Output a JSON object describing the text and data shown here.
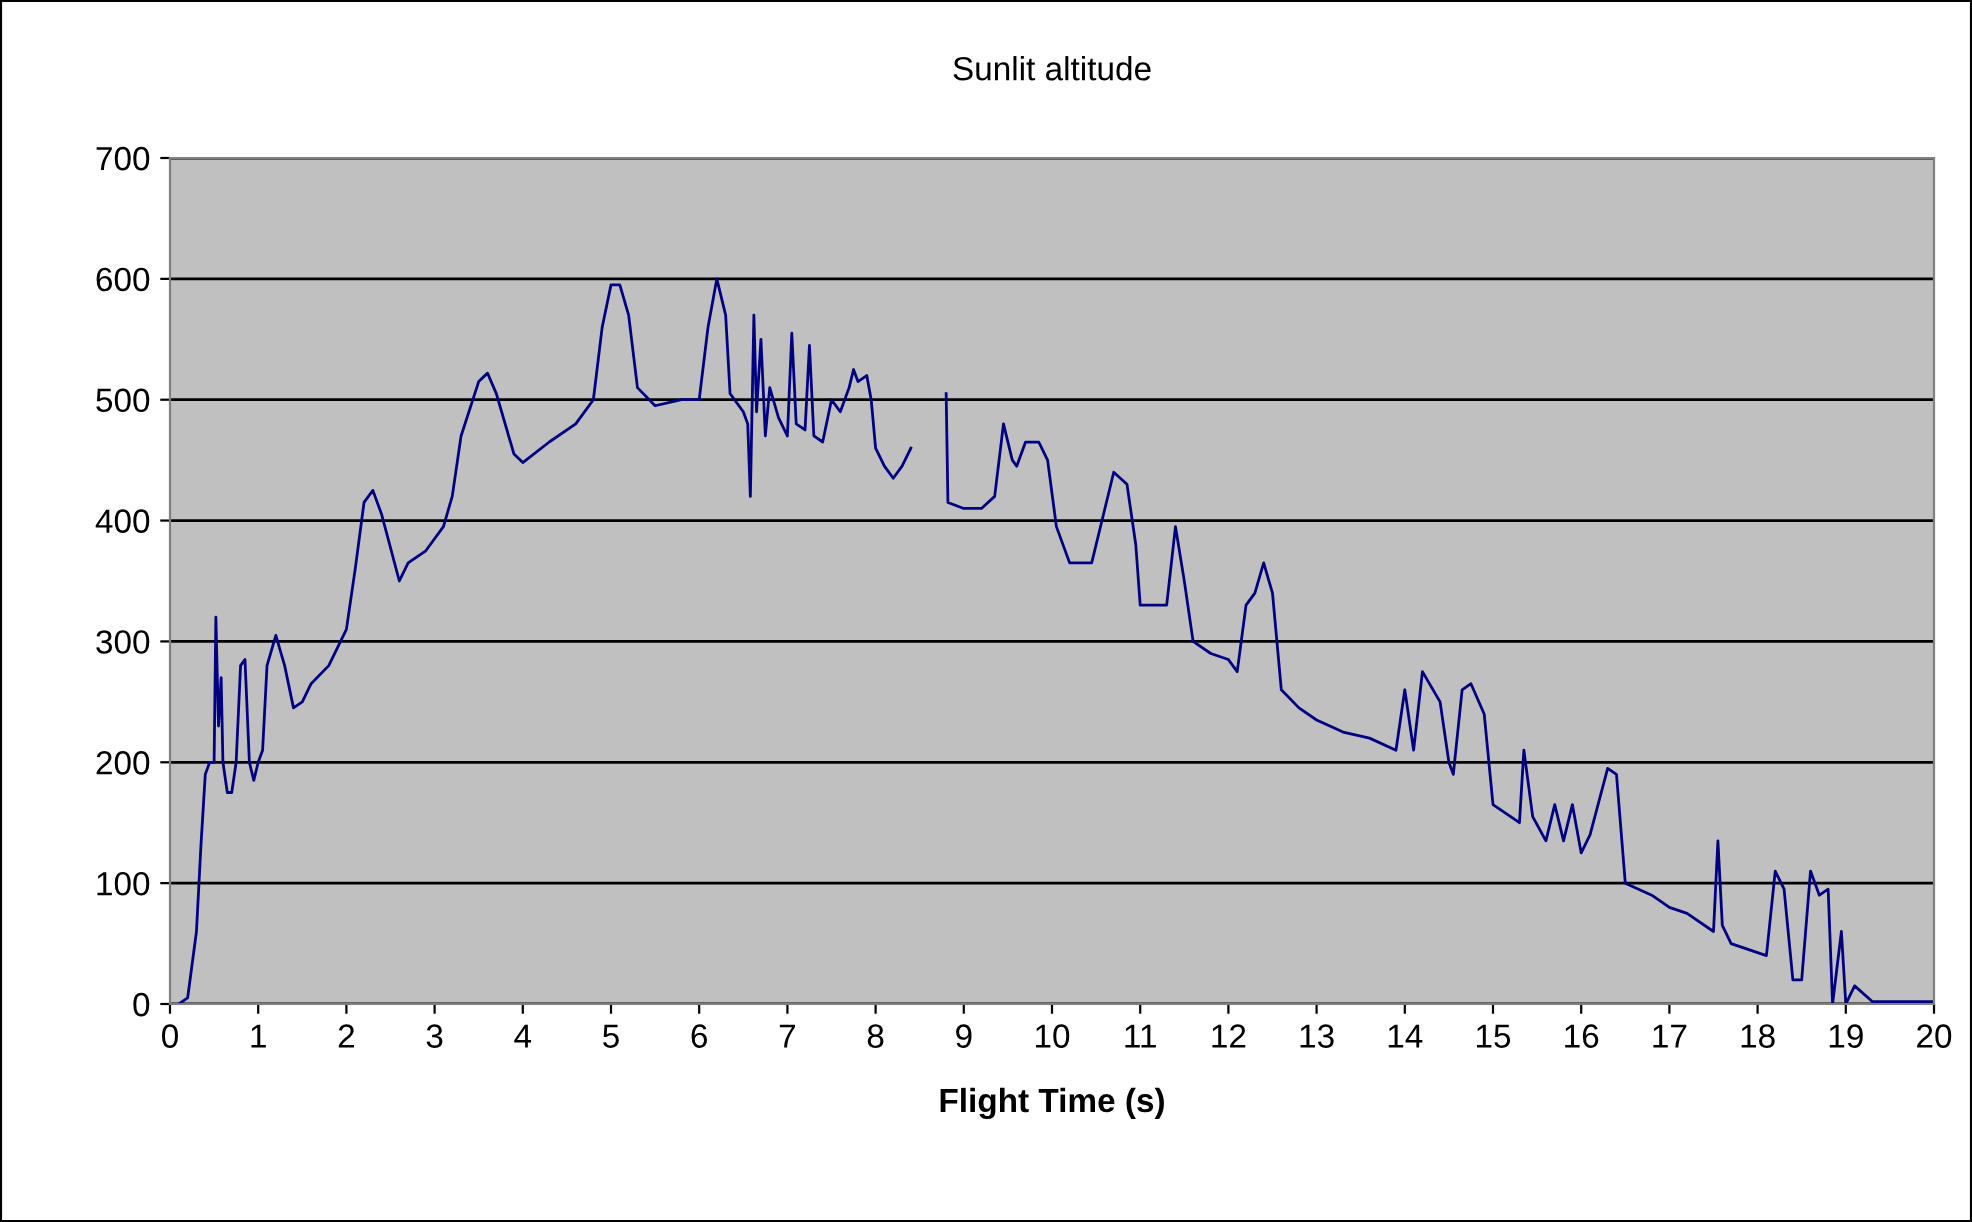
{
  "chart_data": {
    "type": "line",
    "title": "Sunlit altitude",
    "xlabel": "Flight Time (s)",
    "x": [
      0.1,
      0.2,
      0.3,
      0.35,
      0.4,
      0.45,
      0.5,
      0.52,
      0.55,
      0.58,
      0.6,
      0.65,
      0.7,
      0.75,
      0.8,
      0.85,
      0.9,
      0.95,
      1.0,
      1.05,
      1.1,
      1.2,
      1.3,
      1.4,
      1.5,
      1.6,
      1.8,
      2.0,
      2.1,
      2.2,
      2.3,
      2.4,
      2.6,
      2.7,
      2.9,
      3.1,
      3.2,
      3.3,
      3.5,
      3.6,
      3.7,
      3.9,
      4.0,
      4.3,
      4.6,
      4.8,
      4.9,
      5.0,
      5.1,
      5.2,
      5.3,
      5.5,
      5.8,
      6.0,
      6.1,
      6.2,
      6.3,
      6.35,
      6.5,
      6.55,
      6.58,
      6.62,
      6.65,
      6.7,
      6.75,
      6.8,
      6.9,
      7.0,
      7.05,
      7.1,
      7.2,
      7.25,
      7.3,
      7.4,
      7.5,
      7.6,
      7.7,
      7.75,
      7.8,
      7.9,
      7.95,
      8.0,
      8.1,
      8.2,
      8.3,
      8.4,
      8.45,
      8.8,
      8.82,
      9.0,
      9.2,
      9.35,
      9.45,
      9.55,
      9.6,
      9.7,
      9.85,
      9.95,
      10.05,
      10.2,
      10.45,
      10.6,
      10.7,
      10.85,
      10.95,
      11.0,
      11.3,
      11.4,
      11.5,
      11.6,
      11.8,
      12.0,
      12.1,
      12.2,
      12.3,
      12.4,
      12.5,
      12.6,
      12.8,
      13.0,
      13.3,
      13.6,
      13.9,
      14.0,
      14.1,
      14.2,
      14.4,
      14.5,
      14.55,
      14.65,
      14.75,
      14.9,
      15.0,
      15.3,
      15.35,
      15.45,
      15.6,
      15.7,
      15.8,
      15.9,
      16.0,
      16.1,
      16.3,
      16.4,
      16.5,
      16.8,
      17.0,
      17.2,
      17.5,
      17.55,
      17.6,
      17.7,
      17.9,
      18.1,
      18.2,
      18.3,
      18.4,
      18.5,
      18.6,
      18.7,
      18.8,
      18.85,
      18.95,
      19.0,
      19.1,
      19.3,
      20.0
    ],
    "series": [
      {
        "color": "#000080",
        "values": [
          0,
          5,
          60,
          130,
          190,
          200,
          200,
          320,
          230,
          270,
          200,
          175,
          175,
          200,
          280,
          285,
          200,
          185,
          200,
          210,
          280,
          305,
          280,
          245,
          250,
          265,
          280,
          310,
          360,
          415,
          425,
          405,
          350,
          365,
          375,
          395,
          420,
          470,
          515,
          522,
          505,
          455,
          448,
          465,
          480,
          500,
          560,
          595,
          595,
          570,
          510,
          495,
          500,
          500,
          560,
          600,
          570,
          505,
          490,
          480,
          420,
          570,
          490,
          550,
          470,
          510,
          485,
          470,
          555,
          480,
          475,
          545,
          470,
          465,
          500,
          490,
          510,
          525,
          515,
          520,
          500,
          460,
          445,
          435,
          445,
          460,
          null,
          505,
          415,
          410,
          410,
          420,
          480,
          450,
          445,
          465,
          465,
          450,
          395,
          365,
          365,
          410,
          440,
          430,
          380,
          330,
          330,
          395,
          350,
          300,
          290,
          285,
          275,
          330,
          340,
          365,
          340,
          260,
          245,
          235,
          225,
          220,
          210,
          260,
          210,
          275,
          250,
          200,
          190,
          260,
          265,
          240,
          165,
          150,
          210,
          155,
          135,
          165,
          135,
          165,
          125,
          140,
          195,
          190,
          100,
          90,
          80,
          75,
          60,
          135,
          65,
          50,
          45,
          40,
          110,
          95,
          20,
          20,
          110,
          90,
          95,
          0,
          60,
          0,
          15,
          2,
          2
        ]
      }
    ],
    "xlim": [
      0,
      20
    ],
    "xticks": [
      0,
      1,
      2,
      3,
      4,
      5,
      6,
      7,
      8,
      9,
      10,
      11,
      12,
      13,
      14,
      15,
      16,
      17,
      18,
      19,
      20
    ],
    "ylim": [
      0,
      700
    ],
    "yticks": [
      0,
      100,
      200,
      300,
      400,
      500,
      600,
      700
    ],
    "grid": "y",
    "legend": false,
    "marker": "none",
    "line_style": "solid"
  }
}
